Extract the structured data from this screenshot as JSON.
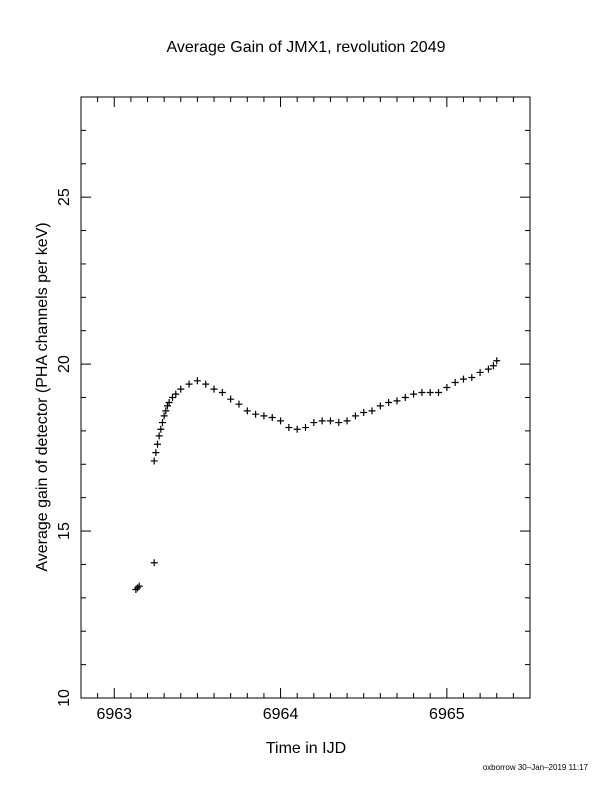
{
  "chart_data": {
    "type": "scatter",
    "title": "Average Gain of JMX1, revolution 2049",
    "xlabel": "Time in IJD",
    "ylabel": "Average gain of detector (PHA channels per keV)",
    "xlim": [
      6962.8,
      6965.5
    ],
    "ylim": [
      10,
      28
    ],
    "xticks": [
      6963,
      6964,
      6965
    ],
    "xtick_labels": [
      "6963",
      "6964",
      "6965"
    ],
    "yticks": [
      10,
      15,
      20,
      25
    ],
    "ytick_labels": [
      "10",
      "15",
      "20",
      "25"
    ],
    "grid": false,
    "marker": "plus",
    "series": [
      {
        "color": "#000000",
        "x": [
          6963.13,
          6963.14,
          6963.15,
          6963.24,
          6963.24,
          6963.25,
          6963.26,
          6963.27,
          6963.28,
          6963.29,
          6963.3,
          6963.31,
          6963.32,
          6963.33,
          6963.35,
          6963.37,
          6963.4,
          6963.45,
          6963.5,
          6963.55,
          6963.6,
          6963.65,
          6963.7,
          6963.75,
          6963.8,
          6963.85,
          6963.9,
          6963.95,
          6964.0,
          6964.05,
          6964.1,
          6964.15,
          6964.2,
          6964.25,
          6964.3,
          6964.35,
          6964.4,
          6964.45,
          6964.5,
          6964.55,
          6964.6,
          6964.65,
          6964.7,
          6964.75,
          6964.8,
          6964.85,
          6964.9,
          6964.95,
          6965.0,
          6965.05,
          6965.1,
          6965.15,
          6965.2,
          6965.25,
          6965.28,
          6965.3
        ],
        "y": [
          13.25,
          13.3,
          13.35,
          14.05,
          17.1,
          17.35,
          17.6,
          17.85,
          18.05,
          18.25,
          18.45,
          18.6,
          18.75,
          18.85,
          19.0,
          19.1,
          19.25,
          19.4,
          19.5,
          19.4,
          19.25,
          19.15,
          18.95,
          18.8,
          18.6,
          18.5,
          18.45,
          18.4,
          18.3,
          18.1,
          18.05,
          18.1,
          18.25,
          18.3,
          18.3,
          18.25,
          18.3,
          18.45,
          18.55,
          18.6,
          18.75,
          18.85,
          18.9,
          19.0,
          19.1,
          19.15,
          19.15,
          19.15,
          19.3,
          19.45,
          19.55,
          19.6,
          19.75,
          19.85,
          19.95,
          20.1
        ]
      }
    ]
  },
  "footer": {
    "stamp": "oxborrow 30–Jan–2019 11:17"
  }
}
